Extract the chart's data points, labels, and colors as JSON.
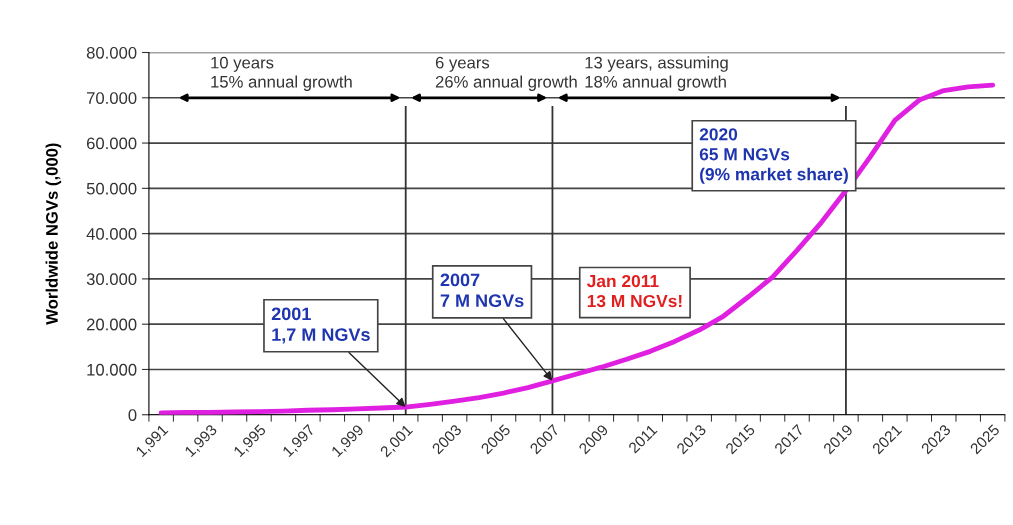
{
  "chart_data": {
    "type": "line",
    "ylabel": "Worldwide NGVs (,000)",
    "categories": [
      "1,991",
      null,
      "1,993",
      null,
      "1,995",
      null,
      "1,997",
      null,
      "1,999",
      null,
      "2,001",
      null,
      "2003",
      null,
      "2005",
      null,
      "2007",
      null,
      "2009",
      null,
      "2011",
      null,
      "2013",
      null,
      "2015",
      null,
      "2017",
      null,
      "2019",
      null,
      "2021",
      null,
      "2023",
      null,
      "2025"
    ],
    "series": [
      {
        "color": "#e020e0",
        "values": [
          400,
          500,
          500,
          600,
          700,
          800,
          1000,
          1100,
          1300,
          1500,
          1700,
          2300,
          3000,
          3800,
          4800,
          6000,
          7500,
          9000,
          10500,
          12200,
          14000,
          16200,
          18700,
          21800,
          26000,
          30400,
          36300,
          42500,
          49500,
          57000,
          65000,
          69500,
          71600,
          72400,
          72800
        ]
      }
    ],
    "ylim": [
      0,
      80000
    ],
    "yticks": [
      {
        "value": 0,
        "label": "0"
      },
      {
        "value": 10000,
        "label": "10.000"
      },
      {
        "value": 20000,
        "label": "20.000"
      },
      {
        "value": 30000,
        "label": "30.000"
      },
      {
        "value": 40000,
        "label": "40.000"
      },
      {
        "value": 50000,
        "label": "50.000"
      },
      {
        "value": 60000,
        "label": "60.000"
      },
      {
        "value": 70000,
        "label": "70.000"
      },
      {
        "value": 80000,
        "label": "80.000"
      }
    ],
    "grid": "y",
    "marker": "none",
    "line_style": "solid",
    "ref_lines": [
      {
        "axis": "x",
        "value": "2,001",
        "color": "#333333"
      },
      {
        "axis": "x",
        "value": "2007",
        "color": "#333333"
      },
      {
        "axis": "x",
        "value": "2019",
        "color": "#333333"
      }
    ],
    "annotations": [
      "10 years\n15% annual growth",
      "6 years\n26% annual growth",
      "13 years, assuming\n18% annual growth",
      {
        "text": "2001\n1,7 M NGVs",
        "x": "2,001",
        "y": 1700
      },
      {
        "text": "2007\n7 M NGVs",
        "x": "2007",
        "y": 7500
      },
      "Jan 2011\n13 M NGVs!",
      "2020\n65 M NGVs\n(9% market share)"
    ]
  }
}
